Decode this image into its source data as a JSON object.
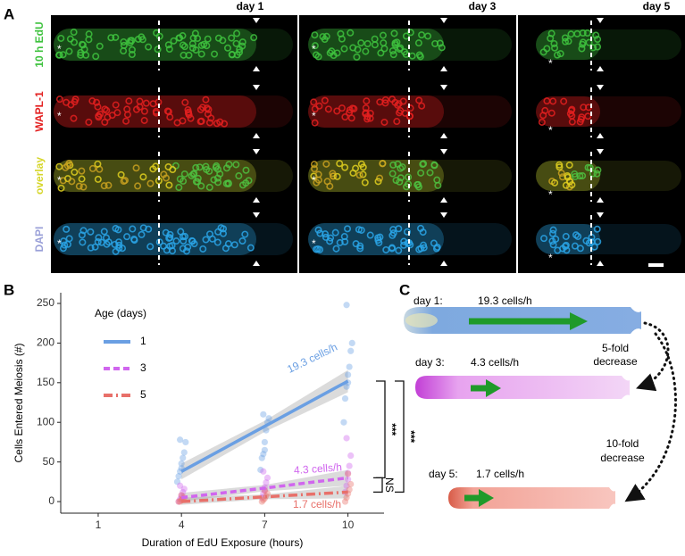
{
  "panel_labels": [
    "A",
    "B",
    "C"
  ],
  "panel_a": {
    "columns": [
      "day 1",
      "day 3",
      "day 5"
    ],
    "rows": [
      "10 h EdU",
      "WAPL-1",
      "overlay",
      "DAPI"
    ],
    "asterisk": "*"
  },
  "chart_data": {
    "type": "scatter",
    "xlabel": "Duration of EdU Exposure (hours)",
    "ylabel": "Cells Entered Meiosis (#)",
    "xlim": [
      -0.35,
      11.3
    ],
    "xticks": [
      1,
      4,
      7,
      10
    ],
    "ylim": [
      -14.6,
      263.5
    ],
    "yticks": [
      0,
      50,
      100,
      150,
      200,
      250
    ],
    "grid": false,
    "legend_title": "Age (days)",
    "legend": "upper left",
    "series": [
      {
        "name": "1",
        "color": "#6a9fe3",
        "line_style": "solid",
        "x": [
          3.85,
          3.9,
          3.95,
          4,
          4,
          4.05,
          4.1,
          4.15,
          3.95,
          6.85,
          6.9,
          6.95,
          7,
          7,
          7.05,
          7.1,
          7.15,
          6.95,
          9.85,
          9.9,
          9.95,
          10,
          10,
          10.05,
          10.1,
          10.15,
          9.95
        ],
        "values": [
          25,
          32,
          38,
          42,
          48,
          55,
          62,
          75,
          78,
          40,
          55,
          60,
          65,
          75,
          90,
          100,
          105,
          110,
          100,
          130,
          145,
          150,
          160,
          170,
          190,
          200,
          248
        ],
        "fit": {
          "x": [
            4,
            7,
            10
          ],
          "values": [
            38,
            95,
            152
          ],
          "ci_lower": [
            28,
            88,
            138
          ],
          "ci_upper": [
            48,
            102,
            166
          ]
        }
      },
      {
        "name": "3",
        "color": "#d066ee",
        "line_style": "dashed",
        "x": [
          3.9,
          3.95,
          4,
          4,
          4.05,
          4.1,
          3.95,
          6.9,
          6.95,
          7,
          7,
          7.05,
          7.1,
          6.95,
          9.9,
          9.95,
          10,
          10,
          10.05,
          10.1,
          9.95
        ],
        "values": [
          0,
          3,
          5,
          8,
          12,
          16,
          20,
          5,
          10,
          14,
          18,
          24,
          30,
          38,
          12,
          20,
          28,
          36,
          45,
          58,
          80
        ],
        "fit": {
          "x": [
            4,
            7,
            10
          ],
          "values": [
            5,
            17,
            30
          ],
          "ci_lower": [
            0,
            13,
            20
          ],
          "ci_upper": [
            11,
            21,
            40
          ]
        }
      },
      {
        "name": "5",
        "color": "#e8706a",
        "line_style": "dashdot",
        "x": [
          3.9,
          3.95,
          4,
          4.05,
          4.1,
          4,
          6.9,
          6.95,
          7,
          7.05,
          7.1,
          7,
          9.9,
          9.95,
          10,
          10.05,
          10.1,
          10
        ],
        "values": [
          0,
          0,
          2,
          3,
          5,
          8,
          0,
          2,
          4,
          7,
          10,
          14,
          0,
          5,
          10,
          15,
          22,
          35
        ],
        "fit": {
          "x": [
            4,
            7,
            10
          ],
          "values": [
            0,
            6,
            12
          ],
          "ci_lower": [
            -4,
            3,
            4
          ],
          "ci_upper": [
            5,
            9,
            20
          ]
        }
      }
    ],
    "annotations": [
      "19.3 cells/h",
      "4.3 cells/h",
      "1.7 cells/h"
    ],
    "significance": [
      "***",
      "***",
      "NS"
    ]
  },
  "panel_c": {
    "items": [
      {
        "label": "day 1:",
        "rate": "19.3 cells/h"
      },
      {
        "label": "day 3:",
        "rate": "4.3 cells/h"
      },
      {
        "label": "day 5:",
        "rate": "1.7 cells/h"
      }
    ],
    "decreases": [
      [
        "5-fold",
        "decrease"
      ],
      [
        "10-fold",
        "decrease"
      ]
    ]
  }
}
